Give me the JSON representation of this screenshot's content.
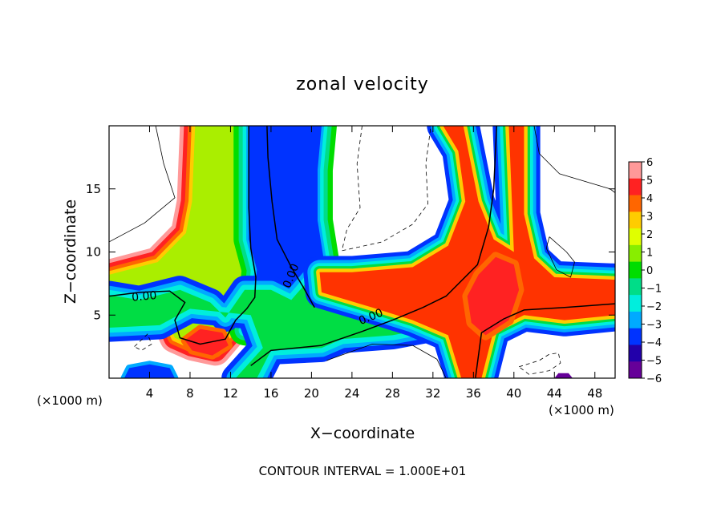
{
  "chart_data": {
    "type": "heatmap",
    "title": "zonal velocity",
    "xlabel": "X−coordinate",
    "ylabel": "Z−coordinate",
    "x_unit_left": "(×1000 m)",
    "x_unit_right": "(×1000 m)",
    "footer": "CONTOUR INTERVAL = 1.000E+01",
    "xlim": [
      0,
      50
    ],
    "ylim": [
      0,
      20
    ],
    "x_ticks": [
      {
        "value": 4,
        "label": "4"
      },
      {
        "value": 8,
        "label": "8"
      },
      {
        "value": 12,
        "label": "12"
      },
      {
        "value": 16,
        "label": "16"
      },
      {
        "value": 20,
        "label": "20"
      },
      {
        "value": 24,
        "label": "24"
      },
      {
        "value": 28,
        "label": "28"
      },
      {
        "value": 32,
        "label": "32"
      },
      {
        "value": 36,
        "label": "36"
      },
      {
        "value": 40,
        "label": "40"
      },
      {
        "value": 44,
        "label": "44"
      },
      {
        "value": 48,
        "label": "48"
      }
    ],
    "y_ticks": [
      {
        "value": 5,
        "label": "5"
      },
      {
        "value": 10,
        "label": "10"
      },
      {
        "value": 15,
        "label": "15"
      }
    ],
    "colorbar": {
      "min": -6,
      "max": 6,
      "labels": [
        "6",
        "5",
        "4",
        "3",
        "2",
        "1",
        "0",
        "−1",
        "−2",
        "−3",
        "−4",
        "−5",
        "−6"
      ],
      "colors": [
        "#ff9999",
        "#ff2222",
        "#ff6600",
        "#ffcc00",
        "#e0ff00",
        "#88ee00",
        "#00dd00",
        "#00dd88",
        "#00eedd",
        "#00aaff",
        "#0033ff",
        "#2200aa",
        "#660099"
      ]
    },
    "contour_labels": [
      {
        "text": "0.00",
        "x": 3.5,
        "y": 6.2,
        "rotate": -5
      },
      {
        "text": "0.00",
        "x": 18.3,
        "y": 8.0,
        "rotate": -68
      },
      {
        "text": "0.00",
        "x": 26.0,
        "y": 4.6,
        "rotate": -22
      }
    ],
    "features": [
      {
        "name": "positive-jet",
        "poly": [
          [
            8.5,
            20
          ],
          [
            13.8,
            20
          ],
          [
            13.8,
            11
          ],
          [
            14.6,
            8.6
          ],
          [
            14.6,
            6.8
          ],
          [
            13.0,
            4.9
          ],
          [
            12.0,
            3.6
          ],
          [
            10.5,
            2.2
          ],
          [
            8.2,
            2.6
          ],
          [
            6.5,
            3.2
          ],
          [
            5.0,
            5.8
          ],
          [
            2.5,
            7.0
          ],
          [
            0,
            7.3
          ],
          [
            0,
            8.2
          ],
          [
            4.8,
            9.2
          ],
          [
            7.6,
            11.5
          ],
          [
            8.2,
            14.0
          ]
        ],
        "layers": [
          [
            1.5,
            "#ff9999"
          ],
          [
            1.1,
            "#ff2222"
          ],
          [
            0.7,
            "#ff6600"
          ],
          [
            0.35,
            "#ffcc00"
          ],
          [
            0,
            "#aaee00"
          ]
        ]
      },
      {
        "name": "negative-jet",
        "poly": [
          [
            13.8,
            20
          ],
          [
            21.0,
            20
          ],
          [
            20.6,
            16.5
          ],
          [
            20.6,
            12.5
          ],
          [
            21.2,
            9.5
          ],
          [
            20.8,
            8.0
          ],
          [
            18.0,
            5.0
          ],
          [
            16.0,
            3.5
          ],
          [
            13.4,
            3.8
          ],
          [
            14.4,
            6.8
          ],
          [
            14.6,
            8.6
          ],
          [
            13.8,
            11
          ]
        ],
        "layers": [
          [
            1.5,
            "#00dd00"
          ],
          [
            1.0,
            "#00dd88"
          ],
          [
            0.6,
            "#00eedd"
          ],
          [
            0.25,
            "#00aaff"
          ],
          [
            0,
            "#0033ff"
          ]
        ]
      },
      {
        "name": "lower-shear",
        "poly": [
          [
            0,
            4.0
          ],
          [
            5.0,
            4.2
          ],
          [
            8.0,
            5.5
          ],
          [
            14.0,
            5.0
          ],
          [
            15.2,
            2.4
          ],
          [
            12.5,
            0
          ],
          [
            14.6,
            0
          ],
          [
            16.0,
            2.2
          ],
          [
            21.0,
            2.4
          ],
          [
            23.0,
            3.1
          ],
          [
            28.0,
            3.4
          ],
          [
            32.0,
            4.0
          ],
          [
            33.0,
            4.6
          ],
          [
            33.2,
            6.5
          ],
          [
            29.0,
            8.0
          ],
          [
            20.5,
            8.5
          ],
          [
            18.0,
            6.2
          ],
          [
            16.0,
            7.0
          ],
          [
            13.4,
            7.0
          ],
          [
            11.5,
            4.8
          ],
          [
            10.0,
            6.0
          ],
          [
            7.0,
            7.0
          ],
          [
            3.0,
            6.2
          ],
          [
            0,
            6.6
          ]
        ],
        "layers": [
          [
            1.4,
            "#0033ff"
          ],
          [
            0.9,
            "#00aaff"
          ],
          [
            0.5,
            "#00eedd"
          ],
          [
            0,
            "#00dd44"
          ]
        ]
      },
      {
        "name": "crossing-jet",
        "poly": [
          [
            33.0,
            20
          ],
          [
            35.0,
            20
          ],
          [
            36.5,
            14.0
          ],
          [
            38.0,
            11.0
          ],
          [
            40.0,
            10.0
          ],
          [
            39.5,
            20
          ],
          [
            41.0,
            20
          ],
          [
            41.0,
            13.0
          ],
          [
            42.0,
            9.5
          ],
          [
            44.0,
            8.0
          ],
          [
            50.0,
            7.8
          ],
          [
            50.0,
            5.0
          ],
          [
            45.0,
            4.6
          ],
          [
            41.0,
            5.0
          ],
          [
            38.0,
            3.8
          ],
          [
            36.8,
            0
          ],
          [
            34.8,
            0
          ],
          [
            33.5,
            3.4
          ],
          [
            30.0,
            4.6
          ],
          [
            26.0,
            5.6
          ],
          [
            21.0,
            6.8
          ],
          [
            20.8,
            8.4
          ],
          [
            24.0,
            8.4
          ],
          [
            30.0,
            8.8
          ],
          [
            33.5,
            10.5
          ],
          [
            35.2,
            14.0
          ],
          [
            34.5,
            18.0
          ]
        ],
        "layers": [
          [
            1.6,
            "#0033ff"
          ],
          [
            1.2,
            "#00aaff"
          ],
          [
            0.9,
            "#00eedd"
          ],
          [
            0.6,
            "#00dd44"
          ],
          [
            0.35,
            "#ffcc00"
          ],
          [
            0,
            "#ff3300"
          ]
        ]
      },
      {
        "name": "warm-core",
        "poly": [
          [
            36.5,
            8.2
          ],
          [
            38.2,
            9.6
          ],
          [
            40.0,
            9.0
          ],
          [
            40.5,
            7.0
          ],
          [
            39.5,
            4.6
          ],
          [
            37.2,
            3.4
          ],
          [
            35.8,
            4.4
          ],
          [
            35.4,
            6.5
          ]
        ],
        "layers": [
          [
            0.5,
            "#ff6600"
          ],
          [
            0,
            "#ff2222"
          ]
        ]
      },
      {
        "name": "rotor-left",
        "poly": [
          [
            1.5,
            0
          ],
          [
            6.5,
            0
          ],
          [
            6.0,
            0.8
          ],
          [
            4.0,
            1.1
          ],
          [
            2.0,
            0.8
          ]
        ],
        "layers": [
          [
            0.35,
            "#00aaff"
          ],
          [
            0,
            "#0033ff"
          ]
        ]
      },
      {
        "name": "rotor-right",
        "poly": [
          [
            44.0,
            0
          ],
          [
            45.8,
            0
          ],
          [
            45.4,
            0.4
          ],
          [
            44.4,
            0.4
          ]
        ],
        "layers": [
          [
            0,
            "#660099"
          ]
        ]
      },
      {
        "name": "lobe-warm",
        "poly": [
          [
            7.5,
            3.0
          ],
          [
            9.0,
            3.9
          ],
          [
            11.2,
            3.6
          ],
          [
            11.8,
            2.6
          ],
          [
            10.2,
            1.8
          ],
          [
            8.2,
            2.2
          ]
        ],
        "layers": [
          [
            0.4,
            "#ff6600"
          ],
          [
            0,
            "#ff2222"
          ]
        ]
      }
    ],
    "contours": [
      {
        "name": "zero-left",
        "dash": false,
        "w": 1.5,
        "points": [
          [
            0,
            6.5
          ],
          [
            3,
            6.8
          ],
          [
            6,
            6.9
          ],
          [
            7.5,
            6.0
          ],
          [
            6.5,
            4.6
          ],
          [
            7.0,
            3.2
          ],
          [
            9.0,
            2.7
          ],
          [
            11.5,
            3.1
          ],
          [
            12.5,
            4.6
          ],
          [
            13.6,
            5.5
          ],
          [
            14.4,
            6.4
          ],
          [
            14.5,
            8.0
          ],
          [
            14.0,
            10.3
          ],
          [
            13.8,
            13.5
          ],
          [
            13.8,
            20
          ]
        ]
      },
      {
        "name": "zero-mid",
        "dash": false,
        "w": 1.5,
        "points": [
          [
            20.3,
            5.6
          ],
          [
            19.2,
            7.2
          ],
          [
            18.0,
            8.8
          ],
          [
            16.6,
            11.0
          ],
          [
            16.1,
            14.0
          ],
          [
            15.7,
            17.5
          ],
          [
            15.6,
            20
          ]
        ]
      },
      {
        "name": "zero-lower",
        "dash": false,
        "w": 1.5,
        "points": [
          [
            14.0,
            1.0
          ],
          [
            16.0,
            2.2
          ],
          [
            21.0,
            2.6
          ],
          [
            25.0,
            3.7
          ],
          [
            28.0,
            4.6
          ],
          [
            31.0,
            5.6
          ],
          [
            33.3,
            6.5
          ],
          [
            36.4,
            9.0
          ],
          [
            37.5,
            12.0
          ],
          [
            38.0,
            15.0
          ],
          [
            38.3,
            20
          ]
        ]
      },
      {
        "name": "zero-right",
        "dash": false,
        "w": 1.5,
        "points": [
          [
            36.2,
            0
          ],
          [
            36.8,
            3.6
          ],
          [
            39.0,
            4.7
          ],
          [
            41.0,
            5.4
          ],
          [
            45.0,
            5.6
          ],
          [
            50.0,
            5.9
          ]
        ]
      },
      {
        "name": "thin-left",
        "dash": false,
        "w": 0.8,
        "points": [
          [
            0,
            10.8
          ],
          [
            3.5,
            12.3
          ],
          [
            6.5,
            14.3
          ],
          [
            5.4,
            17.0
          ],
          [
            4.6,
            20
          ]
        ]
      },
      {
        "name": "thin-bottom",
        "dash": false,
        "w": 0.8,
        "points": [
          [
            21.5,
            1.4
          ],
          [
            26.0,
            2.7
          ],
          [
            30.0,
            2.6
          ],
          [
            32.4,
            1.5
          ],
          [
            33.3,
            0
          ]
        ]
      },
      {
        "name": "thin-right",
        "dash": false,
        "w": 0.8,
        "points": [
          [
            42.0,
            20
          ],
          [
            42.5,
            17.8
          ],
          [
            44.5,
            16.2
          ],
          [
            49.5,
            15.0
          ],
          [
            50,
            14.7
          ]
        ]
      },
      {
        "name": "thin-loop",
        "dash": false,
        "w": 0.8,
        "points": [
          [
            43.5,
            11.2
          ],
          [
            45.2,
            10.0
          ],
          [
            46.0,
            9.2
          ],
          [
            45.6,
            8.0
          ],
          [
            44.2,
            8.6
          ],
          [
            43.2,
            10.3
          ],
          [
            43.5,
            11.2
          ]
        ]
      },
      {
        "name": "dash-mid",
        "dash": true,
        "w": 0.8,
        "points": [
          [
            25.0,
            20
          ],
          [
            24.5,
            17.0
          ],
          [
            24.8,
            13.5
          ],
          [
            23.5,
            11.8
          ],
          [
            23.0,
            10.1
          ],
          [
            27.0,
            10.8
          ],
          [
            30.0,
            12.2
          ],
          [
            31.5,
            13.8
          ],
          [
            31.3,
            17.0
          ],
          [
            31.8,
            20
          ]
        ]
      },
      {
        "name": "dash-left",
        "dash": true,
        "w": 0.8,
        "points": [
          [
            2.5,
            2.5
          ],
          [
            3.8,
            3.5
          ],
          [
            4.2,
            2.7
          ],
          [
            3.2,
            2.2
          ],
          [
            2.5,
            2.5
          ]
        ]
      },
      {
        "name": "dash-right",
        "dash": true,
        "w": 0.8,
        "points": [
          [
            40.5,
            0.9
          ],
          [
            42.5,
            1.4
          ],
          [
            43.5,
            1.9
          ],
          [
            44.4,
            2.0
          ],
          [
            44.6,
            1.2
          ],
          [
            43.5,
            0.6
          ],
          [
            41.5,
            0.3
          ],
          [
            40.5,
            0.9
          ]
        ]
      }
    ]
  }
}
